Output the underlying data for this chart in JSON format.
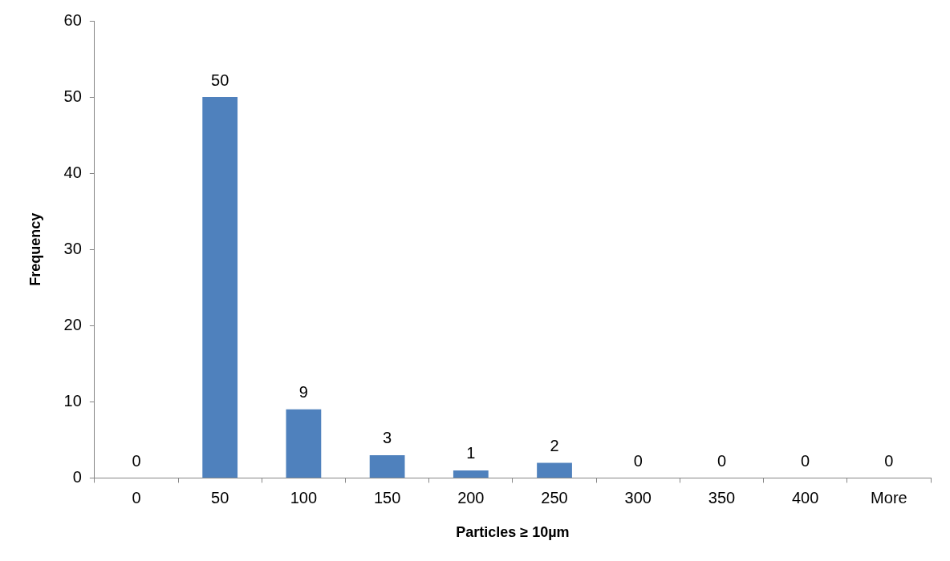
{
  "chart_data": {
    "type": "bar",
    "xlabel": "Particles ≥ 10µm",
    "ylabel": "Frequency",
    "categories": [
      "0",
      "50",
      "100",
      "150",
      "200",
      "250",
      "300",
      "350",
      "400",
      "More"
    ],
    "values": [
      0,
      50,
      9,
      3,
      1,
      2,
      0,
      0,
      0,
      0
    ],
    "color": "#4f81bd",
    "ylim": [
      0,
      60
    ],
    "yticks": [
      0,
      10,
      20,
      30,
      40,
      50,
      60
    ],
    "grid": false,
    "legend": false,
    "data_labels": true
  }
}
